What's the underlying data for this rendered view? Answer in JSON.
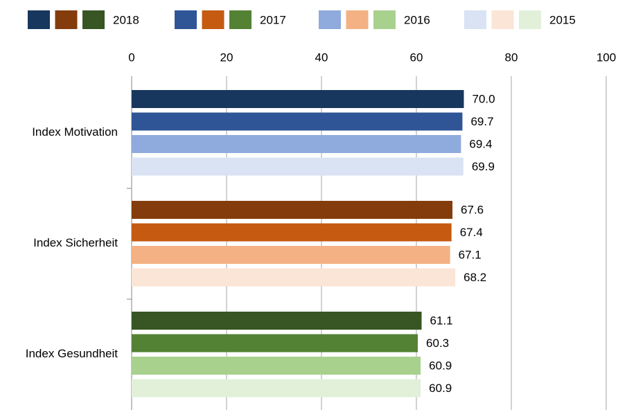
{
  "chart_data": {
    "type": "bar",
    "orientation": "horizontal",
    "categories": [
      "Index Motivation",
      "Index Sicherheit",
      "Index Gesundheit"
    ],
    "series": [
      {
        "name": "2018",
        "colors": [
          "#17375e",
          "#843c0c",
          "#375623"
        ],
        "values": [
          70.0,
          67.6,
          61.1
        ],
        "value_labels": [
          "70.0",
          "67.6",
          "61.1"
        ]
      },
      {
        "name": "2017",
        "colors": [
          "#2f5597",
          "#c55a11",
          "#548235"
        ],
        "values": [
          69.7,
          67.4,
          60.3
        ],
        "value_labels": [
          "69.7",
          "67.4",
          "60.3"
        ]
      },
      {
        "name": "2016",
        "colors": [
          "#8faadc",
          "#f4b183",
          "#a9d18e"
        ],
        "values": [
          69.4,
          67.1,
          60.9
        ],
        "value_labels": [
          "69.4",
          "67.1",
          "60.9"
        ]
      },
      {
        "name": "2015",
        "colors": [
          "#dae3f3",
          "#fbe5d6",
          "#e2f0d9"
        ],
        "values": [
          69.9,
          68.2,
          60.9
        ],
        "value_labels": [
          "69.9",
          "68.2",
          "60.9"
        ]
      }
    ],
    "xlim": [
      0,
      100
    ],
    "xticks": [
      0,
      20,
      40,
      60,
      80,
      100
    ],
    "grid": true,
    "legend": "top"
  }
}
